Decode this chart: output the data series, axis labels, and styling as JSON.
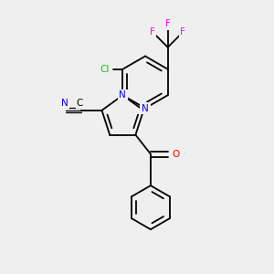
{
  "bg_color": "#efefef",
  "figsize": [
    3.0,
    3.0
  ],
  "dpi": 100,
  "colors": {
    "C": "#000000",
    "N": "#0000FF",
    "O": "#FF0000",
    "F": "#FF00FF",
    "Cl": "#00CC00",
    "bond": "#000000"
  },
  "font_size": 7.5,
  "bond_lw": 1.3
}
